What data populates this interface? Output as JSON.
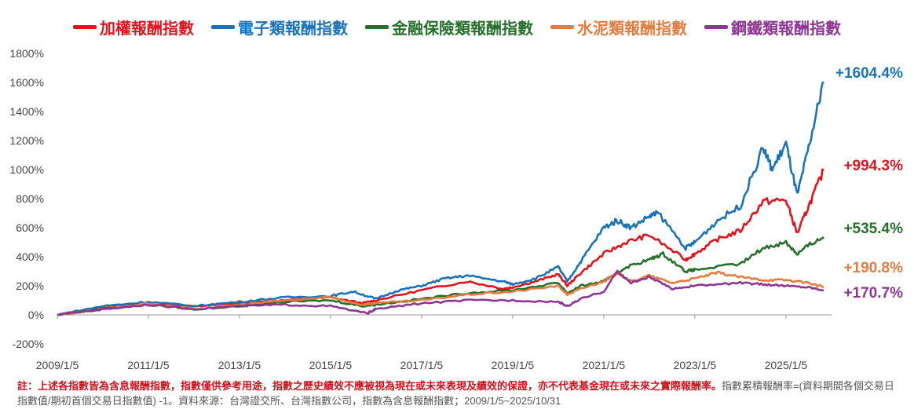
{
  "chart_data": {
    "type": "line",
    "title": "",
    "xlabel": "",
    "ylabel": "",
    "ylim": [
      -200,
      1800
    ],
    "yticks": [
      "-200%",
      "0%",
      "200%",
      "400%",
      "600%",
      "800%",
      "1000%",
      "1200%",
      "1400%",
      "1600%",
      "1800%"
    ],
    "ytick_values": [
      -200,
      0,
      200,
      400,
      600,
      800,
      1000,
      1200,
      1400,
      1600,
      1800
    ],
    "xlim": [
      2009.0,
      2025.83
    ],
    "xticks": [
      "2009/1/5",
      "2011/1/5",
      "2013/1/5",
      "2015/1/5",
      "2017/1/5",
      "2019/1/5",
      "2021/1/5",
      "2023/1/5",
      "2025/1/5"
    ],
    "xtick_values": [
      2009,
      2011,
      2013,
      2015,
      2017,
      2019,
      2021,
      2023,
      2025
    ],
    "legend_position": "top",
    "series": [
      {
        "name": "加權報酬指數",
        "color": "#e3131b",
        "end_label": "+994.3%",
        "x": [
          2009,
          2010,
          2011,
          2012,
          2013,
          2014,
          2015,
          2015.7,
          2016,
          2017,
          2018,
          2018.8,
          2019,
          2019.5,
          2020,
          2020.2,
          2020.5,
          2021,
          2021.5,
          2022,
          2022.8,
          2023,
          2023.5,
          2024,
          2024.5,
          2025,
          2025.25,
          2025.5,
          2025.83
        ],
        "y": [
          0,
          50,
          80,
          60,
          80,
          100,
          120,
          80,
          100,
          170,
          230,
          180,
          190,
          230,
          280,
          200,
          290,
          420,
          500,
          550,
          380,
          420,
          520,
          580,
          780,
          790,
          560,
          750,
          994.3
        ]
      },
      {
        "name": "電子類報酬指數",
        "color": "#1a73ba",
        "end_label": "+1604.4%",
        "x": [
          2009,
          2010,
          2011,
          2012,
          2013,
          2014,
          2015,
          2015.5,
          2016,
          2016.5,
          2017,
          2017.5,
          2018,
          2018.8,
          2019,
          2019.5,
          2020,
          2020.2,
          2020.5,
          2021,
          2021.3,
          2021.6,
          2022,
          2022.2,
          2022.8,
          2023,
          2023.5,
          2024,
          2024.5,
          2024.7,
          2025,
          2025.25,
          2025.5,
          2025.83
        ],
        "y": [
          0,
          60,
          90,
          60,
          90,
          120,
          130,
          160,
          110,
          170,
          200,
          250,
          270,
          230,
          210,
          250,
          330,
          230,
          370,
          600,
          650,
          600,
          680,
          700,
          460,
          500,
          650,
          750,
          1150,
          1000,
          1180,
          820,
          1150,
          1604.4
        ]
      },
      {
        "name": "金融保險類報酬指數",
        "color": "#25702b",
        "end_label": "+535.4%",
        "x": [
          2009,
          2010,
          2011,
          2012,
          2013,
          2014,
          2015,
          2015.7,
          2016,
          2017,
          2018,
          2019,
          2020,
          2020.2,
          2020.5,
          2021,
          2021.5,
          2022,
          2022.3,
          2022.8,
          2023,
          2024,
          2024.5,
          2025,
          2025.25,
          2025.5,
          2025.83
        ],
        "y": [
          0,
          40,
          70,
          40,
          60,
          90,
          100,
          60,
          70,
          110,
          150,
          170,
          220,
          150,
          200,
          230,
          330,
          380,
          420,
          300,
          310,
          350,
          460,
          500,
          420,
          480,
          535.4
        ]
      },
      {
        "name": "水泥類報酬指數",
        "color": "#e57b3f",
        "end_label": "+190.8%",
        "x": [
          2009,
          2010,
          2011,
          2012,
          2013,
          2014,
          2015,
          2015.7,
          2016,
          2017,
          2018,
          2019,
          2020,
          2020.2,
          2020.5,
          2021,
          2021.3,
          2021.6,
          2022,
          2022.5,
          2023,
          2023.5,
          2024,
          2024.5,
          2025,
          2025.5,
          2025.83
        ],
        "y": [
          0,
          40,
          80,
          40,
          70,
          100,
          120,
          70,
          80,
          100,
          140,
          160,
          200,
          140,
          180,
          230,
          290,
          230,
          270,
          220,
          250,
          290,
          260,
          240,
          240,
          220,
          190.8
        ]
      },
      {
        "name": "鋼鐵類報酬指數",
        "color": "#8d3592",
        "end_label": "+170.7%",
        "x": [
          2009,
          2010,
          2011,
          2012,
          2013,
          2014,
          2015,
          2015.8,
          2016,
          2017,
          2018,
          2019,
          2020,
          2020.2,
          2020.5,
          2021,
          2021.3,
          2021.6,
          2022,
          2022.5,
          2023,
          2024,
          2024.5,
          2025,
          2025.5,
          2025.83
        ],
        "y": [
          0,
          40,
          70,
          40,
          60,
          70,
          60,
          10,
          40,
          80,
          100,
          100,
          90,
          60,
          110,
          160,
          300,
          220,
          260,
          180,
          200,
          220,
          210,
          200,
          190,
          170.7
        ]
      }
    ]
  },
  "note": {
    "red": "註：上述各指數皆為含息報酬指數，指數僅供參考用途，指數之歷史績效不應被視為現在或未來表現及績效的保證，亦不代表基金現在或未來之實際報酬率。",
    "gray": "指數累積報酬率=(資料期間各個交易日指數值/期初首個交易日指數值) -1。資料來源：台灣證交所、台灣指數公司，指數為含息報酬指數；2009/1/5~2025/10/31"
  }
}
